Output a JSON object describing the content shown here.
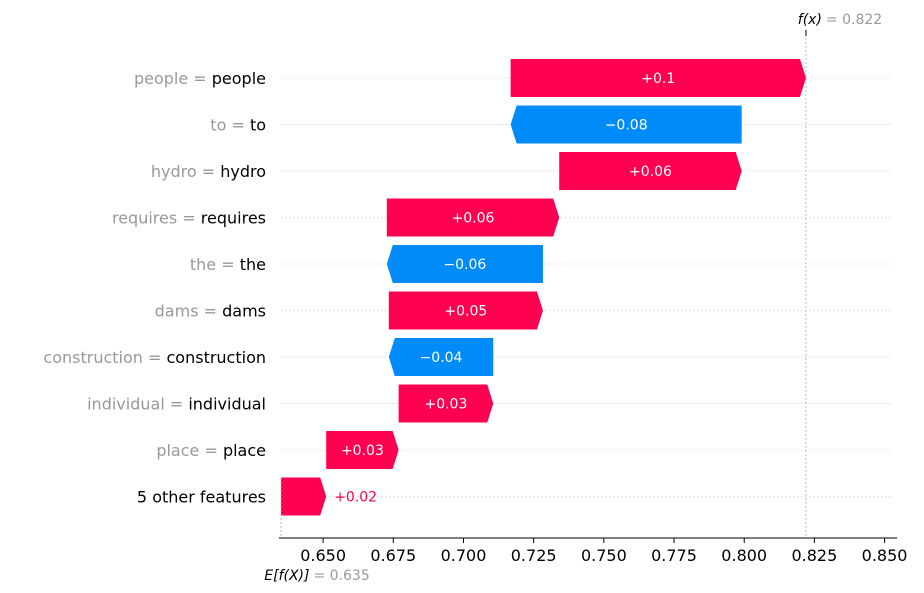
{
  "chart_data": {
    "type": "waterfall",
    "base_value": 0.635,
    "output_value": 0.822,
    "base_label": "E[f(X)]",
    "output_label": "f(x)",
    "base_value_text": "= 0.635",
    "output_value_text": "= 0.822",
    "xlim": [
      0.635,
      0.853
    ],
    "x_ticks": [
      0.65,
      0.675,
      0.7,
      0.725,
      0.75,
      0.775,
      0.8,
      0.825,
      0.85
    ],
    "x_tick_labels": [
      "0.650",
      "0.675",
      "0.700",
      "0.725",
      "0.750",
      "0.775",
      "0.800",
      "0.825",
      "0.850"
    ],
    "colors": {
      "positive": "#ff0051",
      "negative": "#008bfb",
      "name": "#999999",
      "value": "#000000"
    },
    "rows": [
      {
        "name": "people",
        "value": "people",
        "contribution": 0.1,
        "start": 0.7168,
        "end": 0.822,
        "label": "+0.1"
      },
      {
        "name": "to",
        "value": "to",
        "contribution": -0.08,
        "start": 0.7991,
        "end": 0.7168,
        "label": "−0.08"
      },
      {
        "name": "hydro",
        "value": "hydro",
        "contribution": 0.06,
        "start": 0.7341,
        "end": 0.7991,
        "label": "+0.06"
      },
      {
        "name": "requires",
        "value": "requires",
        "contribution": 0.06,
        "start": 0.6727,
        "end": 0.7341,
        "label": "+0.06"
      },
      {
        "name": "the",
        "value": "the",
        "contribution": -0.06,
        "start": 0.7283,
        "end": 0.6727,
        "label": "−0.06"
      },
      {
        "name": "dams",
        "value": "dams",
        "contribution": 0.05,
        "start": 0.6734,
        "end": 0.7283,
        "label": "+0.05"
      },
      {
        "name": "construction",
        "value": "construction",
        "contribution": -0.04,
        "start": 0.7106,
        "end": 0.6734,
        "label": "−0.04"
      },
      {
        "name": "individual",
        "value": "individual",
        "contribution": 0.03,
        "start": 0.6769,
        "end": 0.7106,
        "label": "+0.03"
      },
      {
        "name": "place",
        "value": "place",
        "contribution": 0.03,
        "start": 0.6511,
        "end": 0.6769,
        "label": "+0.03"
      },
      {
        "name": "",
        "value": "5 other features",
        "contribution": 0.02,
        "start": 0.635,
        "end": 0.6511,
        "label": "+0.02"
      }
    ]
  }
}
